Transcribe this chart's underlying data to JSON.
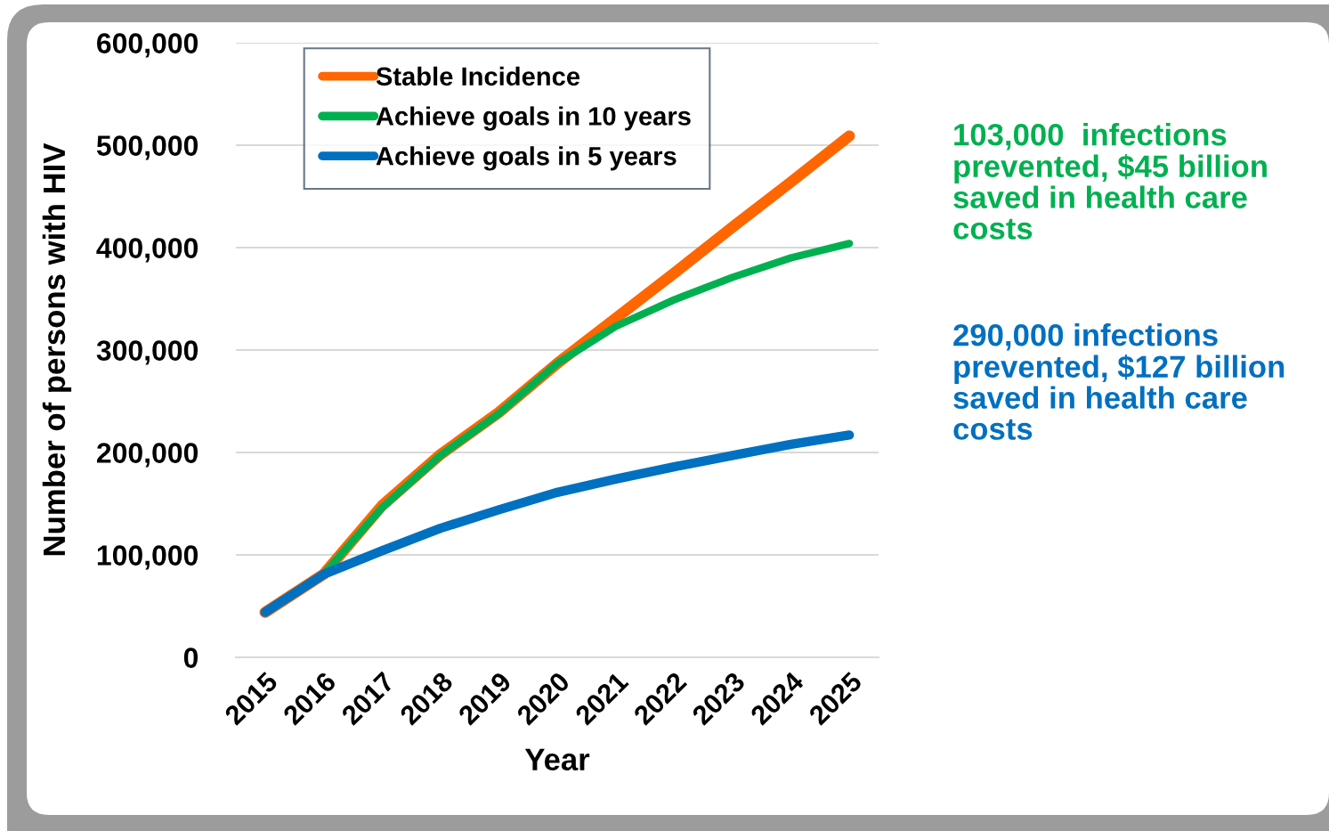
{
  "chart_data": {
    "type": "line",
    "categories": [
      "2015",
      "2016",
      "2017",
      "2018",
      "2019",
      "2020",
      "2021",
      "2022",
      "2023",
      "2024",
      "2025"
    ],
    "series": [
      {
        "name": "Stable Incidence",
        "color": "#ff6600",
        "values": [
          44000,
          81000,
          148000,
          198000,
          239000,
          287000,
          331000,
          375000,
          420000,
          464000,
          509000
        ]
      },
      {
        "name": "Achieve goals in 10 years",
        "color": "#00b050",
        "values": [
          44000,
          81000,
          146000,
          197000,
          238000,
          287000,
          323000,
          349000,
          371000,
          390000,
          404000
        ]
      },
      {
        "name": "Achieve goals in 5 years",
        "color": "#0070c0",
        "values": [
          44000,
          81000,
          104000,
          126000,
          144000,
          161000,
          174000,
          186000,
          197000,
          208000,
          217000
        ]
      }
    ],
    "xlabel": "Year",
    "ylabel": "Number of persons with HIV",
    "ylim": [
      0,
      600000
    ],
    "yticks": [
      0,
      {
        "value": 100000,
        "label": "100,000"
      },
      {
        "value": 200000,
        "label": "200,000"
      },
      {
        "value": 300000,
        "label": "300,000"
      },
      {
        "value": 400000,
        "label": "400,000"
      },
      {
        "value": 500000,
        "label": "500,000"
      },
      {
        "value": 600000,
        "label": "600,000"
      }
    ],
    "grid": "y",
    "legend": "top left",
    "annotations": [
      "103,000  infections prevented, $45 billion saved in health care costs",
      "290,000 infections prevented, $127 billion saved in health care costs"
    ]
  }
}
